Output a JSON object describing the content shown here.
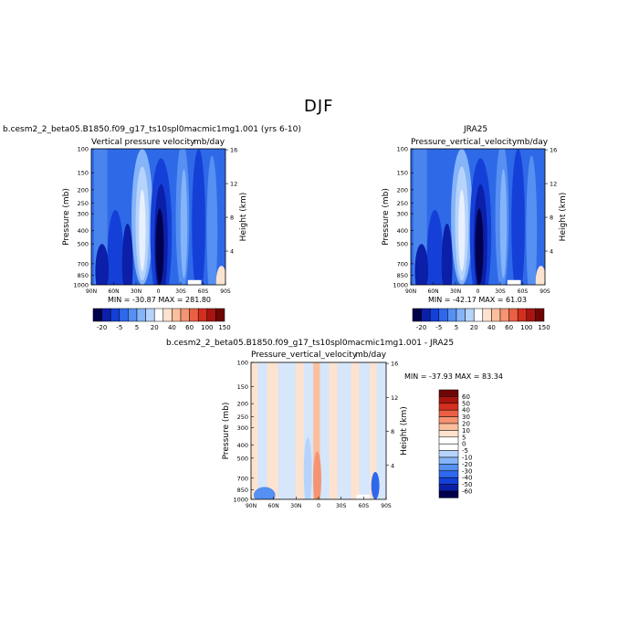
{
  "page_title": "DJF",
  "panels": {
    "model": {
      "case_label": "b.cesm2_2_beta05.B1850.f09_g17_ts10spl0macmic1mg1.001 (yrs 6-10)",
      "subtitle_left": "Vertical pressure velocity",
      "subtitle_right": "mb/day",
      "stats": "MIN = -30.87   MAX = 281.80"
    },
    "obs": {
      "case_label": "JRA25",
      "subtitle_left": "Pressure_vertical_velocity",
      "subtitle_right": "mb/day",
      "stats": "MIN = -42.17   MAX =  61.03"
    },
    "diff": {
      "case_label": "b.cesm2_2_beta05.B1850.f09_g17_ts10spl0macmic1mg1.001 - JRA25",
      "subtitle_left": "Pressure_vertical_velocity",
      "subtitle_right": "mb/day",
      "stats": "MIN = -37.93   MAX =  83.34"
    }
  },
  "axes": {
    "ylabel": "Pressure (mb)",
    "ylabel_right": "Height (km)",
    "pressure_ticks": [
      "100",
      "150",
      "200",
      "250",
      "300",
      "400",
      "500",
      "700",
      "850",
      "1000"
    ],
    "height_ticks": [
      "16",
      "12",
      "8",
      "4"
    ],
    "lat_ticks": [
      "90N",
      "60N",
      "30N",
      "0",
      "30S",
      "60S",
      "90S"
    ]
  },
  "colorbar_top": {
    "labels": [
      "-20",
      "-5",
      "5",
      "20",
      "40",
      "60",
      "100",
      "150"
    ],
    "colors": [
      "#00004c",
      "#0b1fa8",
      "#1440d8",
      "#2f68ec",
      "#5590f2",
      "#86b4f8",
      "#b6d3fb",
      "#ffffff",
      "#fde3cf",
      "#fbbf9e",
      "#f59472",
      "#ea6045",
      "#d22f1f",
      "#a81510",
      "#6e0606"
    ]
  },
  "colorbar_diff": {
    "labels": [
      "60",
      "50",
      "40",
      "30",
      "20",
      "10",
      "5",
      "0",
      "-5",
      "-10",
      "-20",
      "-30",
      "-40",
      "-50",
      "-60"
    ],
    "colors": [
      "#6e0606",
      "#a81510",
      "#d22f1f",
      "#ea6045",
      "#f59472",
      "#fbbf9e",
      "#fde3cf",
      "#ffffff",
      "#ffffff",
      "#b6d3fb",
      "#86b4f8",
      "#5590f2",
      "#2f68ec",
      "#1440d8",
      "#0b1fa8",
      "#00004c"
    ]
  },
  "chart_data": [
    {
      "type": "heatmap",
      "title": "Vertical pressure velocity",
      "units": "mb/day",
      "x": [
        "90N",
        "60N",
        "30N",
        "0",
        "30S",
        "60S",
        "90S"
      ],
      "y_pressure": [
        100,
        150,
        200,
        250,
        300,
        400,
        500,
        700,
        850,
        1000
      ],
      "min": -30.87,
      "max": 281.8
    },
    {
      "type": "heatmap",
      "title": "Pressure_vertical_velocity",
      "units": "mb/day",
      "x": [
        "90N",
        "60N",
        "30N",
        "0",
        "30S",
        "60S",
        "90S"
      ],
      "y_pressure": [
        100,
        150,
        200,
        250,
        300,
        400,
        500,
        700,
        850,
        1000
      ],
      "min": -42.17,
      "max": 61.03
    },
    {
      "type": "heatmap",
      "title": "Pressure_vertical_velocity",
      "units": "mb/day",
      "x": [
        "90N",
        "60N",
        "30N",
        "0",
        "30S",
        "60S",
        "90S"
      ],
      "y_pressure": [
        100,
        150,
        200,
        250,
        300,
        400,
        500,
        700,
        850,
        1000
      ],
      "min": -37.93,
      "max": 83.34
    }
  ]
}
